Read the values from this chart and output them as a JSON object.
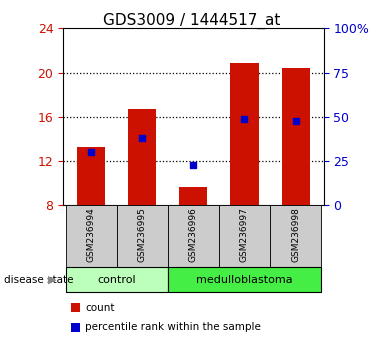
{
  "title": "GDS3009 / 1444517_at",
  "samples": [
    "GSM236994",
    "GSM236995",
    "GSM236996",
    "GSM236997",
    "GSM236998"
  ],
  "bar_bottom": 8,
  "bar_tops": [
    13.3,
    16.7,
    9.7,
    20.9,
    20.4
  ],
  "percentile_values": [
    12.8,
    14.1,
    11.6,
    15.8,
    15.6
  ],
  "ylim": [
    8,
    24
  ],
  "yticks_left": [
    8,
    12,
    16,
    20,
    24
  ],
  "yticks_right": [
    0,
    25,
    50,
    75,
    100
  ],
  "bar_color": "#cc1100",
  "percentile_color": "#0000cc",
  "bar_width": 0.55,
  "disease_groups": [
    {
      "label": "control",
      "indices": [
        0,
        1
      ],
      "color": "#bbffbb"
    },
    {
      "label": "medulloblastoma",
      "indices": [
        2,
        3,
        4
      ],
      "color": "#44ee44"
    }
  ],
  "disease_state_label": "disease state",
  "legend_items": [
    {
      "label": "count",
      "color": "#cc1100"
    },
    {
      "label": "percentile rank within the sample",
      "color": "#0000cc"
    }
  ],
  "background_color": "#ffffff",
  "plot_bg": "#ffffff",
  "left_tick_color": "#cc1100",
  "right_tick_color": "#0000cc",
  "label_box_color": "#cccccc",
  "grid_yticks": [
    12,
    16,
    20
  ]
}
